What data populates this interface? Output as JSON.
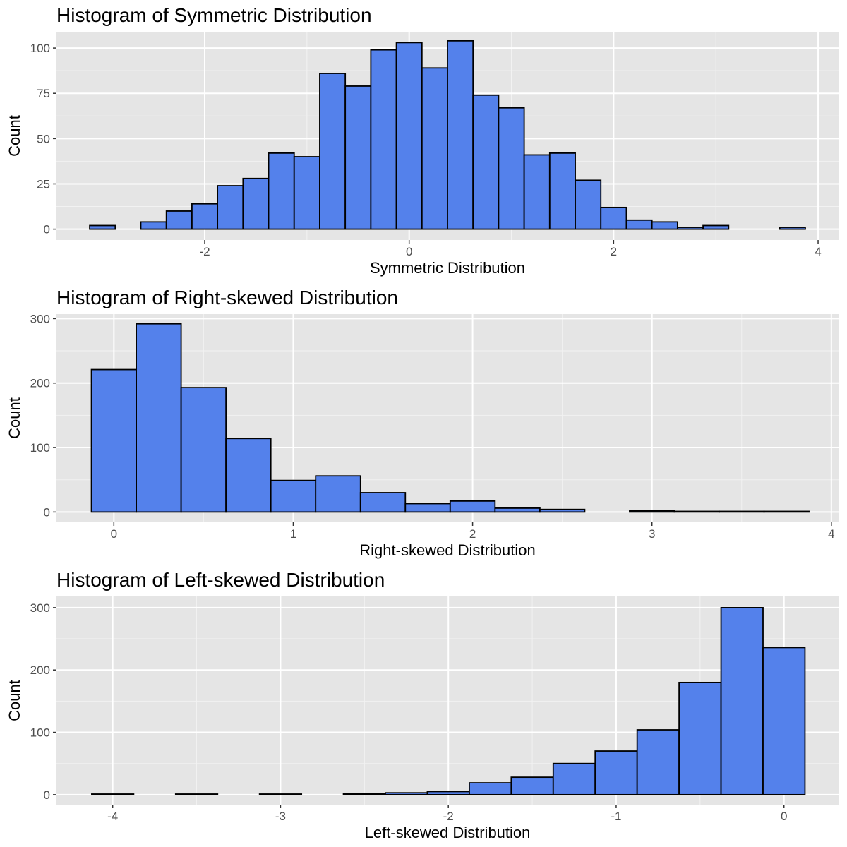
{
  "colors": {
    "panel_bg": "#e5e5e5",
    "bar_fill": "#5481eb",
    "bar_stroke": "#000000"
  },
  "chart_data": [
    {
      "type": "bar",
      "title": "Histogram of Symmetric Distribution",
      "xlabel": "Symmetric Distribution",
      "ylabel": "Count",
      "xlim": [
        -3.45,
        4.2
      ],
      "ylim": [
        -6,
        109
      ],
      "xticks": [
        -2,
        0,
        2,
        4
      ],
      "xtick_labels": [
        "-2",
        "0",
        "2",
        "4"
      ],
      "yticks": [
        0,
        25,
        50,
        75,
        100
      ],
      "ytick_labels": [
        "0",
        "25",
        "50",
        "75",
        "100"
      ],
      "bin_width": 0.25,
      "bin_centers": [
        -3.0,
        -2.75,
        -2.5,
        -2.25,
        -2.0,
        -1.75,
        -1.5,
        -1.25,
        -1.0,
        -0.75,
        -0.5,
        -0.25,
        0.0,
        0.25,
        0.5,
        0.75,
        1.0,
        1.25,
        1.5,
        1.75,
        2.0,
        2.25,
        2.5,
        2.75,
        3.0,
        3.25,
        3.5,
        3.75
      ],
      "values": [
        2,
        0,
        4,
        10,
        14,
        24,
        28,
        42,
        40,
        86,
        79,
        99,
        103,
        89,
        104,
        74,
        67,
        41,
        42,
        27,
        12,
        5,
        4,
        1,
        2,
        0,
        0,
        1
      ],
      "grid": true
    },
    {
      "type": "bar",
      "title": "Histogram of Right-skewed Distribution",
      "xlabel": "Right-skewed Distribution",
      "ylabel": "Count",
      "xlim": [
        -0.32,
        4.04
      ],
      "ylim": [
        -16,
        307
      ],
      "xticks": [
        0,
        1,
        2,
        3,
        4
      ],
      "xtick_labels": [
        "0",
        "1",
        "2",
        "3",
        "4"
      ],
      "yticks": [
        0,
        100,
        200,
        300
      ],
      "ytick_labels": [
        "0",
        "100",
        "200",
        "300"
      ],
      "bin_width": 0.25,
      "bin_centers": [
        0.0,
        0.25,
        0.5,
        0.75,
        1.0,
        1.25,
        1.5,
        1.75,
        2.0,
        2.25,
        2.5,
        2.75,
        3.0,
        3.25,
        3.5,
        3.75
      ],
      "values": [
        221,
        292,
        193,
        114,
        49,
        56,
        30,
        13,
        17,
        6,
        4,
        0,
        2,
        1,
        1,
        1
      ],
      "grid": true
    },
    {
      "type": "bar",
      "title": "Histogram of Left-skewed Distribution",
      "xlabel": "Left-skewed Distribution",
      "ylabel": "Count",
      "xlim": [
        -4.335,
        0.325
      ],
      "ylim": [
        -16,
        318
      ],
      "xticks": [
        -4,
        -3,
        -2,
        -1,
        0
      ],
      "xtick_labels": [
        "-4",
        "-3",
        "-2",
        "-1",
        "0"
      ],
      "yticks": [
        0,
        100,
        200,
        300
      ],
      "ytick_labels": [
        "0",
        "100",
        "200",
        "300"
      ],
      "bin_width": 0.25,
      "bin_centers": [
        -4.0,
        -3.75,
        -3.5,
        -3.25,
        -3.0,
        -2.75,
        -2.5,
        -2.25,
        -2.0,
        -1.75,
        -1.5,
        -1.25,
        -1.0,
        -0.75,
        -0.5,
        -0.25,
        0.0
      ],
      "values": [
        1,
        0,
        1,
        0,
        1,
        0,
        2,
        3,
        5,
        19,
        28,
        50,
        70,
        104,
        180,
        300,
        236
      ],
      "grid": true
    }
  ]
}
